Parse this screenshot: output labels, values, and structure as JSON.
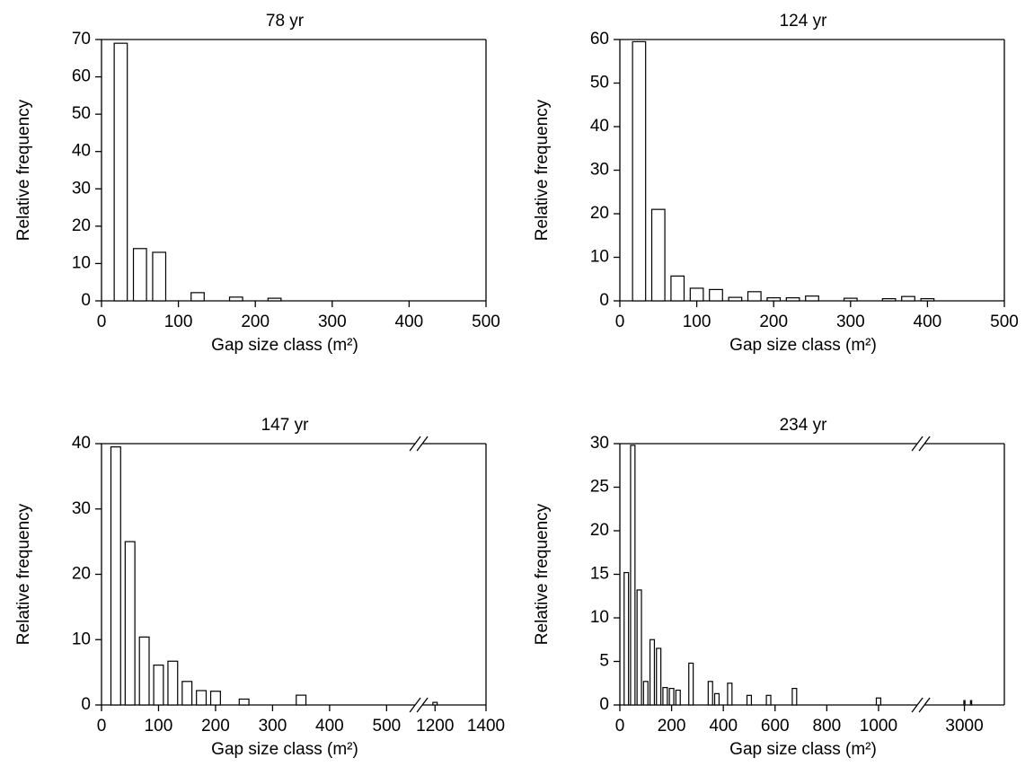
{
  "chart_data": [
    {
      "type": "bar",
      "title": "78 yr",
      "xlabel": "Gap size class (m²)",
      "ylabel": "Relative frequency",
      "x": [
        25,
        50,
        75,
        125,
        175,
        225
      ],
      "values": [
        69,
        14,
        13,
        2.2,
        1,
        0.7
      ],
      "xlim": [
        0,
        500
      ],
      "ylim": [
        0,
        70
      ],
      "xticks": [
        0,
        100,
        200,
        300,
        400,
        500
      ],
      "yticks": [
        0,
        10,
        20,
        30,
        40,
        50,
        60,
        70
      ],
      "color": "#ffffff",
      "edgecolor": "#000000"
    },
    {
      "type": "bar",
      "title": "124 yr",
      "xlabel": "Gap size class (m²)",
      "ylabel": "Relative frequency",
      "x": [
        25,
        50,
        75,
        100,
        125,
        150,
        175,
        200,
        225,
        250,
        300,
        350,
        375,
        400
      ],
      "values": [
        59.5,
        21,
        5.7,
        2.9,
        2.6,
        0.8,
        2.1,
        0.7,
        0.7,
        1.1,
        0.6,
        0.5,
        1,
        0.5
      ],
      "xlim": [
        0,
        500
      ],
      "ylim": [
        0,
        60
      ],
      "xticks": [
        0,
        100,
        200,
        300,
        400,
        500
      ],
      "yticks": [
        0,
        10,
        20,
        30,
        40,
        50,
        60
      ],
      "color": "#ffffff",
      "edgecolor": "#000000"
    },
    {
      "type": "bar",
      "title": "147 yr",
      "xlabel": "Gap size class (m²)",
      "ylabel": "Relative frequency",
      "x": [
        25,
        50,
        75,
        100,
        125,
        150,
        175,
        200,
        250,
        350,
        1200
      ],
      "values": [
        39.5,
        25,
        10.4,
        6.1,
        6.7,
        3.6,
        2.2,
        2.1,
        0.9,
        1.5,
        0.4
      ],
      "xlim": [
        0,
        1400
      ],
      "xbreak": [
        550,
        1150
      ],
      "ylim": [
        0,
        40
      ],
      "xticks": [
        0,
        100,
        200,
        300,
        400,
        500,
        1200,
        1400
      ],
      "yticks": [
        0,
        10,
        20,
        30,
        40
      ],
      "color": "#ffffff",
      "edgecolor": "#000000"
    },
    {
      "type": "bar",
      "title": "234 yr",
      "xlabel": "Gap size class (m²)",
      "ylabel": "Relative frequency",
      "x": [
        25,
        50,
        75,
        100,
        125,
        150,
        175,
        200,
        225,
        275,
        350,
        375,
        425,
        500,
        575,
        675,
        1000,
        3000,
        3100
      ],
      "values": [
        15.2,
        29.8,
        13.2,
        2.7,
        7.5,
        6.5,
        2,
        1.9,
        1.7,
        4.8,
        2.7,
        1.3,
        2.5,
        1.1,
        1.1,
        1.9,
        0.8,
        0.5,
        0.5
      ],
      "xlim": [
        0,
        3600
      ],
      "xbreak": [
        1150,
        2400
      ],
      "ylim": [
        0,
        30
      ],
      "xticks": [
        0,
        200,
        400,
        600,
        800,
        1000,
        3000
      ],
      "yticks": [
        0,
        5,
        10,
        15,
        20,
        25,
        30
      ],
      "color": "#ffffff",
      "edgecolor": "#000000"
    }
  ]
}
